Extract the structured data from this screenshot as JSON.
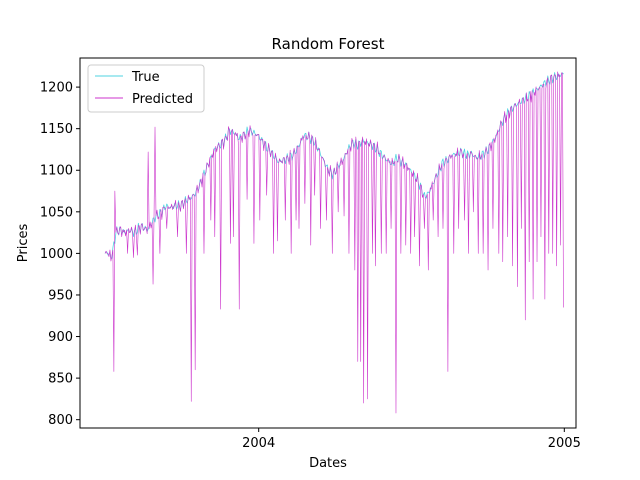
{
  "chart_data": {
    "type": "line",
    "title": "Random Forest",
    "xlabel": "Dates",
    "ylabel": "Prices",
    "x_start": "2003-07-01",
    "x_end": "2004-12-31",
    "xlim": [
      "2003-06-01",
      "2005-01-15"
    ],
    "ylim": [
      790,
      1235
    ],
    "x_ticks": [
      {
        "date": "2004-01-01",
        "label": "2004"
      },
      {
        "date": "2005-01-01",
        "label": "2005"
      }
    ],
    "y_ticks": [
      800,
      850,
      900,
      950,
      1000,
      1050,
      1100,
      1150,
      1200
    ],
    "grid": false,
    "legend_position": "upper left",
    "series": [
      {
        "name": "True",
        "color": "#4fd3e0",
        "anchors": [
          [
            0,
            1000
          ],
          [
            3,
            1001
          ],
          [
            6,
            995
          ],
          [
            8,
            1003
          ],
          [
            11,
            1025
          ],
          [
            15,
            1028
          ],
          [
            20,
            1025
          ],
          [
            25,
            1028
          ],
          [
            30,
            1025
          ],
          [
            34,
            1030
          ],
          [
            38,
            1032
          ],
          [
            43,
            1028
          ],
          [
            47,
            1035
          ],
          [
            52,
            1045
          ],
          [
            57,
            1048
          ],
          [
            62,
            1057
          ],
          [
            67,
            1055
          ],
          [
            72,
            1058
          ],
          [
            77,
            1057
          ],
          [
            82,
            1063
          ],
          [
            88,
            1067
          ],
          [
            92,
            1072
          ],
          [
            97,
            1083
          ],
          [
            102,
            1098
          ],
          [
            107,
            1112
          ],
          [
            112,
            1125
          ],
          [
            117,
            1130
          ],
          [
            122,
            1135
          ],
          [
            127,
            1148
          ],
          [
            132,
            1145
          ],
          [
            137,
            1138
          ],
          [
            142,
            1142
          ],
          [
            147,
            1148
          ],
          [
            152,
            1145
          ],
          [
            157,
            1141
          ],
          [
            162,
            1132
          ],
          [
            167,
            1125
          ],
          [
            172,
            1118
          ],
          [
            177,
            1110
          ],
          [
            182,
            1112
          ],
          [
            188,
            1115
          ],
          [
            193,
            1120
          ],
          [
            198,
            1130
          ],
          [
            203,
            1142
          ],
          [
            208,
            1140
          ],
          [
            213,
            1135
          ],
          [
            218,
            1125
          ],
          [
            223,
            1112
          ],
          [
            228,
            1100
          ],
          [
            233,
            1095
          ],
          [
            238,
            1105
          ],
          [
            243,
            1112
          ],
          [
            248,
            1125
          ],
          [
            253,
            1133
          ],
          [
            258,
            1130
          ],
          [
            263,
            1135
          ],
          [
            268,
            1133
          ],
          [
            273,
            1130
          ],
          [
            278,
            1125
          ],
          [
            283,
            1118
          ],
          [
            288,
            1112
          ],
          [
            293,
            1108
          ],
          [
            298,
            1115
          ],
          [
            303,
            1110
          ],
          [
            308,
            1105
          ],
          [
            313,
            1098
          ],
          [
            318,
            1090
          ],
          [
            322,
            1080
          ],
          [
            326,
            1068
          ],
          [
            330,
            1072
          ],
          [
            334,
            1082
          ],
          [
            339,
            1095
          ],
          [
            344,
            1108
          ],
          [
            349,
            1112
          ],
          [
            354,
            1118
          ],
          [
            359,
            1120
          ],
          [
            364,
            1122
          ],
          [
            369,
            1118
          ],
          [
            374,
            1120
          ],
          [
            379,
            1115
          ],
          [
            384,
            1118
          ],
          [
            389,
            1122
          ],
          [
            394,
            1130
          ],
          [
            399,
            1140
          ],
          [
            404,
            1155
          ],
          [
            409,
            1165
          ],
          [
            414,
            1172
          ],
          [
            419,
            1178
          ],
          [
            424,
            1182
          ],
          [
            429,
            1186
          ],
          [
            434,
            1190
          ],
          [
            439,
            1195
          ],
          [
            444,
            1200
          ],
          [
            449,
            1205
          ],
          [
            454,
            1209
          ],
          [
            459,
            1212
          ],
          [
            464,
            1214
          ],
          [
            468,
            1216
          ]
        ]
      },
      {
        "name": "Predicted",
        "color": "#cc33cc",
        "spikes": [
          [
            9,
            858
          ],
          [
            10,
            1075
          ],
          [
            23,
            1000
          ],
          [
            29,
            995
          ],
          [
            33,
            998
          ],
          [
            44,
            1122
          ],
          [
            49,
            963
          ],
          [
            51,
            1152
          ],
          [
            56,
            1000
          ],
          [
            63,
            1030
          ],
          [
            74,
            1020
          ],
          [
            83,
            1000
          ],
          [
            88,
            822
          ],
          [
            92,
            860
          ],
          [
            101,
            1000
          ],
          [
            108,
            1040
          ],
          [
            112,
            1020
          ],
          [
            118,
            933
          ],
          [
            128,
            1012
          ],
          [
            131,
            1020
          ],
          [
            137,
            933
          ],
          [
            145,
            1065
          ],
          [
            152,
            1012
          ],
          [
            158,
            1040
          ],
          [
            165,
            1070
          ],
          [
            172,
            1000
          ],
          [
            176,
            1015
          ],
          [
            184,
            1040
          ],
          [
            190,
            1000
          ],
          [
            195,
            1040
          ],
          [
            198,
            1030
          ],
          [
            204,
            1060
          ],
          [
            210,
            1010
          ],
          [
            214,
            1070
          ],
          [
            220,
            1030
          ],
          [
            226,
            1040
          ],
          [
            232,
            1000
          ],
          [
            238,
            1050
          ],
          [
            244,
            1045
          ],
          [
            249,
            1000
          ],
          [
            255,
            980
          ],
          [
            258,
            870
          ],
          [
            261,
            870
          ],
          [
            264,
            820
          ],
          [
            268,
            825
          ],
          [
            273,
            1000
          ],
          [
            276,
            985
          ],
          [
            282,
            1000
          ],
          [
            287,
            1000
          ],
          [
            292,
            1030
          ],
          [
            297,
            808
          ],
          [
            302,
            1000
          ],
          [
            307,
            1010
          ],
          [
            312,
            1000
          ],
          [
            316,
            1020
          ],
          [
            321,
            985
          ],
          [
            326,
            1030
          ],
          [
            330,
            980
          ],
          [
            335,
            1040
          ],
          [
            340,
            1020
          ],
          [
            345,
            1030
          ],
          [
            350,
            858
          ],
          [
            356,
            1000
          ],
          [
            361,
            1030
          ],
          [
            367,
            1040
          ],
          [
            371,
            1000
          ],
          [
            376,
            1050
          ],
          [
            381,
            1000
          ],
          [
            386,
            1000
          ],
          [
            391,
            980
          ],
          [
            396,
            1030
          ],
          [
            402,
            1000
          ],
          [
            406,
            990
          ],
          [
            411,
            1020
          ],
          [
            416,
            985
          ],
          [
            421,
            960
          ],
          [
            425,
            1030
          ],
          [
            429,
            920
          ],
          [
            433,
            990
          ],
          [
            437,
            945
          ],
          [
            441,
            990
          ],
          [
            445,
            1020
          ],
          [
            449,
            945
          ],
          [
            453,
            1000
          ],
          [
            457,
            1000
          ],
          [
            461,
            985
          ],
          [
            465,
            1010
          ],
          [
            468,
            935
          ]
        ]
      }
    ]
  }
}
